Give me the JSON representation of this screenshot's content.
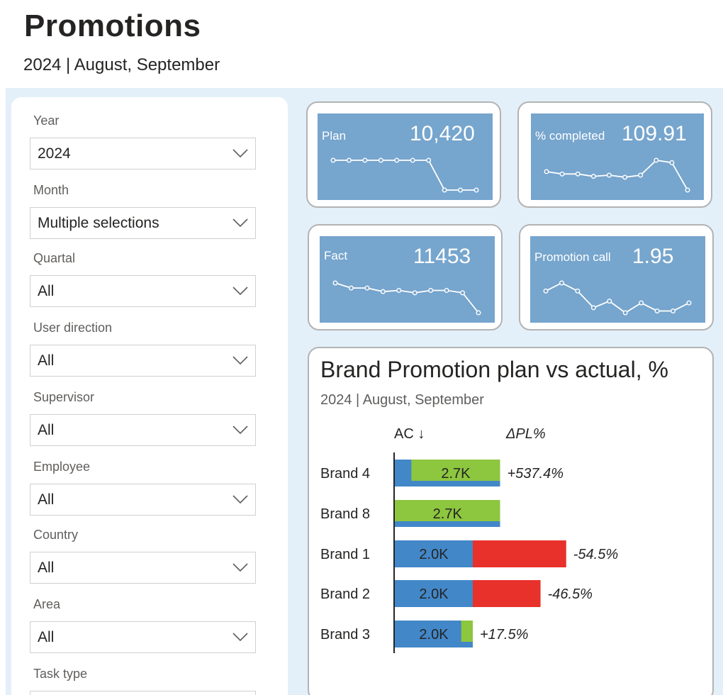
{
  "header": {
    "title": "Promotions",
    "subtitle": "2024 | August, September"
  },
  "filters": [
    {
      "label": "Year",
      "value": "2024"
    },
    {
      "label": "Month",
      "value": "Multiple selections"
    },
    {
      "label": "Quartal",
      "value": "All"
    },
    {
      "label": "User direction",
      "value": "All"
    },
    {
      "label": "Supervisor",
      "value": "All"
    },
    {
      "label": "Employee",
      "value": "All"
    },
    {
      "label": "Country",
      "value": "All"
    },
    {
      "label": "Area",
      "value": "All"
    },
    {
      "label": "Task type",
      "value": ""
    }
  ],
  "kpis": [
    {
      "label": "Plan",
      "value": "10,420",
      "trend": [
        0.0,
        0.0,
        0.0,
        0.0,
        0.0,
        0.0,
        0.0,
        1.0,
        1.0,
        1.0
      ]
    },
    {
      "label": "% completed",
      "value": "109.91",
      "trend": [
        0.38,
        0.46,
        0.46,
        0.54,
        0.5,
        0.57,
        0.5,
        0.0,
        0.08,
        1.0
      ]
    },
    {
      "label": "Fact",
      "value": "11453",
      "trend": [
        0.0,
        0.17,
        0.17,
        0.29,
        0.25,
        0.33,
        0.25,
        0.25,
        0.33,
        1.0
      ]
    },
    {
      "label": "Promotion call",
      "value": "1.95",
      "trend": [
        0.27,
        0.0,
        0.27,
        0.83,
        0.61,
        1.0,
        0.67,
        0.94,
        0.94,
        0.67
      ]
    }
  ],
  "colors": {
    "kpi_bg": "#76a5cd",
    "actual": "#4287c8",
    "positive": "#8dc63f",
    "negative": "#e8312a",
    "canvas": "#e3f0fa"
  },
  "chart_data": {
    "type": "bar",
    "title": "Brand Promotion plan vs actual, %",
    "subtitle": "2024 | August, September",
    "column_headers": {
      "ac": "AC ↓",
      "dpl": "ΔPL%"
    },
    "categories": [
      "Brand 4",
      "Brand 8",
      "Brand 1",
      "Brand 2",
      "Brand 3"
    ],
    "actual": [
      2700,
      2700,
      2000,
      2000,
      2000
    ],
    "actual_labels": [
      "2.7K",
      "2.7K",
      "2.0K",
      "2.0K",
      "2.0K"
    ],
    "plan": [
      424,
      0,
      4396,
      3738,
      1702
    ],
    "delta_pl_percent": [
      "+537.4%",
      "",
      "-54.5%",
      "-46.5%",
      "+17.5%"
    ]
  }
}
